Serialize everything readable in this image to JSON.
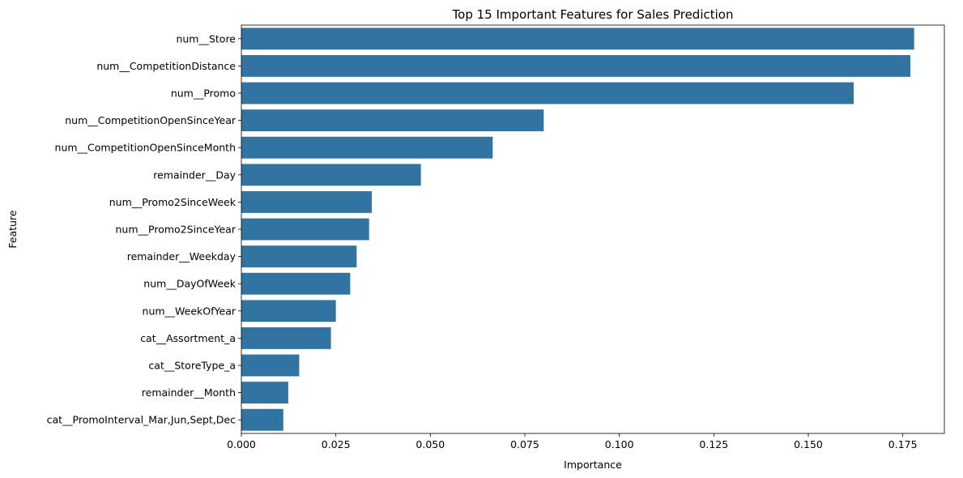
{
  "chart_data": {
    "type": "bar",
    "orientation": "horizontal",
    "title": "Top 15 Important Features for Sales Prediction",
    "xlabel": "Importance",
    "ylabel": "Feature",
    "xlim": [
      0,
      0.186
    ],
    "xticks": [
      0.0,
      0.025,
      0.05,
      0.075,
      0.1,
      0.125,
      0.15,
      0.175
    ],
    "xtick_labels": [
      "0.000",
      "0.025",
      "0.050",
      "0.075",
      "0.100",
      "0.125",
      "0.150",
      "0.175"
    ],
    "grid": false,
    "bar_color": "#3274a1",
    "categories": [
      "num__Store",
      "num__CompetitionDistance",
      "num__Promo",
      "num__CompetitionOpenSinceYear",
      "num__CompetitionOpenSinceMonth",
      "remainder__Day",
      "num__Promo2SinceWeek",
      "num__Promo2SinceYear",
      "remainder__Weekday",
      "num__DayOfWeek",
      "num__WeekOfYear",
      "cat__Assortment_a",
      "cat__StoreType_a",
      "remainder__Month",
      "cat__PromoInterval_Mar,Jun,Sept,Dec"
    ],
    "values": [
      0.178,
      0.177,
      0.162,
      0.08,
      0.0665,
      0.0475,
      0.0345,
      0.0338,
      0.0305,
      0.0288,
      0.025,
      0.0237,
      0.0153,
      0.0124,
      0.0111
    ]
  }
}
